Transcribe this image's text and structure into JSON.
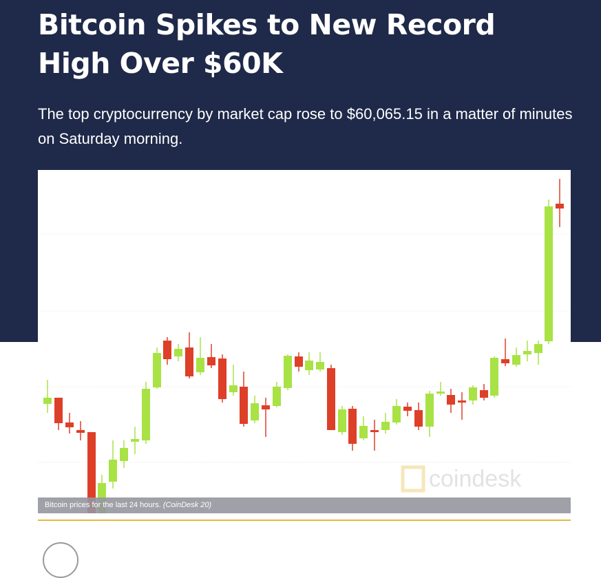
{
  "article": {
    "title": "Bitcoin Spikes to New Record High Over $60K",
    "subtitle": "The top cryptocurrency by market cap rose to $60,065.15 in a matter of minutes on Saturday morning.",
    "image": {
      "watermark": "coindesk",
      "caption": "Bitcoin prices for the last 24 hours.",
      "credit": "(CoinDesk 20)"
    }
  }
}
